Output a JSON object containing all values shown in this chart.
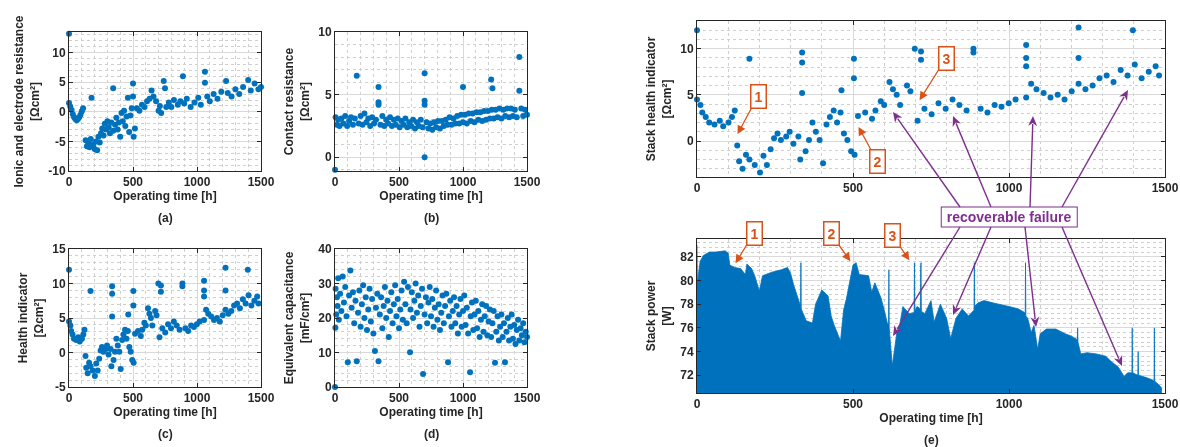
{
  "chart_data": [
    {
      "type": "scatter",
      "xlabel": "Operating time [h]",
      "ylabel": "Ionic and electrode resistance\n[Ωcm²]",
      "annotations": [
        "(a)"
      ],
      "xlim": [
        0,
        1500
      ],
      "ylim": [
        -10,
        13.5
      ],
      "xticks": [
        0,
        500,
        1000,
        1500
      ],
      "yticks": [
        -10,
        -5,
        0,
        5,
        10
      ],
      "grid": true,
      "marker": "circle",
      "x": [
        0,
        0,
        10,
        20,
        30,
        40,
        50,
        60,
        70,
        80,
        90,
        100,
        110,
        130,
        140,
        150,
        160,
        170,
        176,
        190,
        200,
        210,
        220,
        230,
        240,
        250,
        260,
        270,
        280,
        290,
        300,
        310,
        320,
        330,
        345,
        345,
        360,
        370,
        380,
        390,
        400,
        410,
        420,
        430,
        440,
        450,
        460,
        470,
        480,
        490,
        500,
        500,
        505,
        515,
        530,
        550,
        570,
        590,
        610,
        630,
        645,
        660,
        680,
        700,
        710,
        720,
        740,
        750,
        760,
        780,
        800,
        820,
        850,
        870,
        890,
        900,
        920,
        950,
        980,
        1010,
        1030,
        1062,
        1062,
        1080,
        1100,
        1130,
        1160,
        1190,
        1227,
        1240,
        1270,
        1300,
        1330,
        1360,
        1400,
        1420,
        1450,
        1480,
        1500
      ],
      "series": [
        {
          "color": "#0072bd",
          "values": [
            13.2,
            1.5,
            0.9,
            0.3,
            -0.4,
            -0.9,
            -1.2,
            -1.4,
            -1.2,
            -0.9,
            -0.5,
            0.1,
            0.6,
            -4.8,
            -5.8,
            -5.2,
            -6.0,
            -4.6,
            2.4,
            -5.5,
            -6.3,
            -5.0,
            -6.5,
            -4.2,
            -5.2,
            -3.6,
            -2.8,
            -4.0,
            -2.0,
            -3.0,
            -1.6,
            -2.6,
            -3.6,
            -1.8,
            4.0,
            -3.2,
            -2.2,
            -1.0,
            -3.0,
            -1.8,
            -4.2,
            -0.2,
            -1.6,
            0.2,
            -2.4,
            -0.8,
            2.4,
            -3.4,
            -0.6,
            0.6,
            4.8,
            2.6,
            -4.2,
            -2.8,
            0.6,
            0.2,
            1.2,
            0.8,
            1.8,
            2.2,
            3.6,
            2.6,
            1.8,
            0.2,
            1.0,
            -0.2,
            5.2,
            4.0,
            0.8,
            1.6,
            0.8,
            2.0,
            1.2,
            1.8,
            6.0,
            1.4,
            2.2,
            0.8,
            1.6,
            2.4,
            1.2,
            6.8,
            4.9,
            2.6,
            1.8,
            3.0,
            2.2,
            3.4,
            5.2,
            3.2,
            2.6,
            3.8,
            3.0,
            4.2,
            5.4,
            3.6,
            4.8,
            3.8,
            4.2
          ]
        }
      ]
    },
    {
      "type": "scatter",
      "xlabel": "Operating time [h]",
      "ylabel": "Contact resistance\n[Ωcm²]",
      "annotations": [
        "(b)"
      ],
      "xlim": [
        0,
        1500
      ],
      "ylim": [
        -1.1,
        10
      ],
      "xticks": [
        0,
        500,
        1000,
        1500
      ],
      "yticks": [
        0,
        5,
        10
      ],
      "grid": true,
      "marker": "circle",
      "x": [
        0,
        5,
        15,
        25,
        35,
        50,
        65,
        80,
        95,
        110,
        125,
        140,
        155,
        170,
        185,
        200,
        215,
        230,
        245,
        260,
        275,
        290,
        305,
        320,
        340,
        340,
        340,
        355,
        370,
        385,
        400,
        415,
        430,
        445,
        460,
        475,
        490,
        505,
        520,
        535,
        550,
        565,
        580,
        595,
        610,
        625,
        640,
        655,
        670,
        685,
        700,
        700,
        700,
        700,
        715,
        730,
        745,
        760,
        775,
        790,
        805,
        820,
        835,
        850,
        865,
        880,
        895,
        910,
        925,
        940,
        955,
        970,
        985,
        1000,
        1000,
        1015,
        1030,
        1045,
        1060,
        1075,
        1090,
        1105,
        1120,
        1135,
        1150,
        1165,
        1180,
        1195,
        1210,
        1220,
        1225,
        1230,
        1240,
        1255,
        1270,
        1285,
        1300,
        1315,
        1330,
        1345,
        1360,
        1375,
        1390,
        1405,
        1420,
        1440,
        1440,
        1455,
        1470,
        1485,
        1500
      ],
      "series": [
        {
          "color": "#0072bd",
          "values": [
            -1.0,
            3.2,
            2.6,
            3.0,
            2.5,
            3.1,
            2.7,
            3.3,
            2.5,
            2.9,
            3.2,
            2.6,
            3.1,
            6.5,
            2.7,
            3.3,
            2.6,
            3.5,
            2.8,
            3.1,
            2.5,
            3.2,
            2.7,
            3.0,
            5.6,
            4.4,
            4.2,
            2.6,
            3.3,
            2.5,
            3.0,
            2.7,
            3.2,
            2.5,
            3.0,
            2.6,
            3.1,
            2.4,
            2.9,
            2.6,
            3.1,
            2.4,
            2.8,
            2.5,
            3.0,
            2.3,
            2.8,
            2.5,
            3.0,
            2.4,
            6.7,
            4.5,
            4.2,
            0.0,
            2.8,
            2.3,
            2.7,
            2.2,
            2.8,
            2.4,
            2.9,
            2.3,
            2.9,
            2.5,
            3.0,
            2.6,
            3.2,
            2.6,
            3.1,
            2.7,
            3.3,
            2.7,
            3.4,
            5.6,
            2.8,
            3.4,
            2.7,
            3.5,
            2.9,
            3.5,
            2.8,
            3.6,
            3.0,
            3.6,
            2.9,
            3.7,
            3.0,
            3.7,
            3.1,
            6.2,
            3.8,
            5.5,
            3.1,
            3.8,
            3.2,
            3.9,
            3.1,
            3.8,
            3.3,
            3.9,
            3.2,
            3.9,
            3.3,
            3.8,
            3.2,
            8.0,
            5.3,
            3.9,
            3.3,
            3.8,
            3.4
          ]
        }
      ]
    },
    {
      "type": "scatter",
      "ylabel": "Stack health indicator\n[Ωcm²]",
      "xlim": [
        0,
        1500
      ],
      "ylim": [
        -3.9,
        13
      ],
      "xticks": [
        0,
        500,
        1000,
        1500
      ],
      "yticks": [
        0,
        5,
        10
      ],
      "grid": true,
      "marker": "circle",
      "annotations": [
        "1",
        "2",
        "3",
        "recoverable failure"
      ],
      "x": [
        0,
        0,
        11,
        17,
        28,
        39,
        56,
        73,
        84,
        101,
        112,
        121,
        129,
        135,
        146,
        157,
        168,
        168,
        185,
        202,
        213,
        224,
        236,
        247,
        258,
        269,
        286,
        297,
        309,
        325,
        331,
        337,
        337,
        337,
        348,
        359,
        370,
        381,
        393,
        404,
        415,
        426,
        438,
        449,
        460,
        463,
        471,
        482,
        494,
        503,
        503,
        505,
        516,
        539,
        561,
        572,
        589,
        600,
        617,
        628,
        640,
        651,
        673,
        684,
        698,
        707,
        718,
        718,
        729,
        752,
        774,
        797,
        819,
        841,
        864,
        886,
        886,
        909,
        931,
        954,
        976,
        999,
        1021,
        1055,
        1055,
        1055,
        1055,
        1071,
        1088,
        1111,
        1133,
        1156,
        1178,
        1201,
        1223,
        1223,
        1223,
        1245,
        1268,
        1290,
        1313,
        1335,
        1358,
        1380,
        1397,
        1403,
        1425,
        1448,
        1470,
        1481
      ],
      "series": [
        {
          "color": "#0072bd",
          "values": [
            12.0,
            4.5,
            3.9,
            3.1,
            2.6,
            2.0,
            1.8,
            2.2,
            1.6,
            2.0,
            2.6,
            3.3,
            -0.5,
            -2.2,
            -3.0,
            -1.5,
            -2.0,
            8.9,
            -2.6,
            -3.4,
            -1.6,
            -2.6,
            -0.9,
            0.3,
            0.8,
            0.1,
            0.5,
            1.0,
            -0.3,
            0.5,
            -2.0,
            9.6,
            8.5,
            5.2,
            -1.1,
            0.1,
            2.0,
            1.0,
            0.1,
            -2.4,
            1.8,
            2.6,
            3.3,
            2.0,
            3.1,
            5.5,
            0.8,
            0.1,
            -1.1,
            8.9,
            6.8,
            -1.5,
            2.7,
            3.1,
            2.4,
            3.3,
            4.3,
            3.9,
            6.4,
            5.6,
            5.0,
            3.9,
            6.0,
            5.4,
            10.0,
            2.2,
            9.7,
            8.8,
            3.5,
            2.9,
            4.1,
            3.5,
            4.5,
            3.9,
            3.3,
            10.0,
            9.6,
            3.5,
            3.1,
            3.9,
            3.7,
            4.1,
            4.5,
            10.4,
            9.0,
            8.1,
            4.7,
            6.2,
            5.6,
            5.2,
            4.7,
            5.0,
            4.5,
            5.4,
            12.3,
            9.0,
            6.2,
            5.6,
            6.0,
            6.8,
            7.1,
            6.4,
            7.7,
            7.1,
            12.0,
            8.3,
            6.8,
            7.5,
            8.1,
            7.1
          ]
        }
      ]
    },
    {
      "type": "scatter",
      "xlabel": "Operating time [h]",
      "ylabel": "Health indicator\n[Ωcm²]",
      "annotations": [
        "(c)"
      ],
      "xlim": [
        0,
        1500
      ],
      "ylim": [
        -5,
        15
      ],
      "xticks": [
        0,
        500,
        1000,
        1500
      ],
      "yticks": [
        -5,
        0,
        5,
        10,
        15
      ],
      "grid": true,
      "marker": "circle",
      "x": [
        0,
        0,
        11,
        17,
        28,
        39,
        56,
        73,
        84,
        101,
        112,
        121,
        129,
        135,
        146,
        157,
        168,
        168,
        185,
        202,
        213,
        224,
        236,
        247,
        258,
        269,
        286,
        297,
        309,
        325,
        331,
        337,
        337,
        337,
        348,
        359,
        370,
        381,
        393,
        404,
        415,
        426,
        438,
        449,
        460,
        463,
        471,
        482,
        494,
        503,
        503,
        505,
        516,
        539,
        561,
        572,
        589,
        600,
        617,
        628,
        640,
        651,
        673,
        684,
        698,
        707,
        718,
        718,
        729,
        752,
        774,
        797,
        819,
        841,
        864,
        886,
        886,
        909,
        931,
        954,
        976,
        999,
        1021,
        1055,
        1055,
        1055,
        1055,
        1071,
        1088,
        1111,
        1133,
        1156,
        1178,
        1201,
        1223,
        1223,
        1223,
        1245,
        1268,
        1290,
        1313,
        1335,
        1358,
        1380,
        1397,
        1403,
        1425,
        1448,
        1470,
        1481
      ],
      "series": [
        {
          "color": "#0072bd",
          "values": [
            12.0,
            4.5,
            3.9,
            3.1,
            2.6,
            2.0,
            1.8,
            2.2,
            1.6,
            2.0,
            2.6,
            3.3,
            -0.5,
            -2.2,
            -3.0,
            -1.5,
            -2.0,
            8.9,
            -2.6,
            -3.4,
            -1.6,
            -2.6,
            -0.9,
            0.3,
            0.8,
            0.1,
            0.5,
            1.0,
            -0.3,
            0.5,
            -2.0,
            9.6,
            8.5,
            5.2,
            -1.1,
            0.1,
            2.0,
            1.0,
            0.1,
            -2.4,
            1.8,
            2.6,
            3.3,
            2.0,
            3.1,
            5.5,
            0.8,
            0.1,
            -1.1,
            8.9,
            6.8,
            -1.5,
            2.7,
            3.1,
            2.4,
            3.3,
            4.3,
            3.9,
            6.4,
            5.6,
            5.0,
            3.9,
            6.0,
            5.4,
            10.0,
            2.2,
            9.7,
            8.8,
            3.5,
            2.9,
            4.1,
            3.5,
            4.5,
            3.9,
            3.3,
            10.0,
            9.6,
            3.5,
            3.1,
            3.9,
            3.7,
            4.1,
            4.5,
            10.4,
            9.0,
            8.1,
            4.7,
            6.2,
            5.6,
            5.2,
            4.7,
            5.0,
            4.5,
            5.4,
            12.3,
            9.0,
            6.2,
            5.6,
            6.0,
            6.8,
            7.1,
            6.4,
            7.7,
            7.1,
            12.0,
            8.3,
            6.8,
            7.5,
            8.1,
            7.1
          ]
        }
      ]
    },
    {
      "type": "scatter",
      "xlabel": "Operating time [h]",
      "ylabel": "Equivalent capacitance\n[mF/cm²]",
      "annotations": [
        "(d)"
      ],
      "xlim": [
        0,
        1500
      ],
      "ylim": [
        0,
        40
      ],
      "xticks": [
        0,
        500,
        1000,
        1500
      ],
      "yticks": [
        0,
        10,
        20,
        30,
        40
      ],
      "grid": true,
      "marker": "circle",
      "x": [
        0,
        3,
        5,
        10,
        15,
        20,
        25,
        30,
        40,
        50,
        60,
        70,
        80,
        90,
        100,
        110,
        120,
        130,
        140,
        150,
        160,
        170,
        180,
        190,
        200,
        210,
        220,
        230,
        240,
        250,
        260,
        270,
        280,
        290,
        300,
        312,
        320,
        330,
        340,
        350,
        360,
        370,
        380,
        390,
        400,
        410,
        420,
        430,
        440,
        450,
        460,
        470,
        480,
        490,
        500,
        510,
        520,
        530,
        540,
        550,
        560,
        570,
        586,
        590,
        600,
        610,
        620,
        630,
        640,
        650,
        660,
        670,
        680,
        688,
        700,
        710,
        720,
        730,
        740,
        750,
        760,
        770,
        780,
        790,
        800,
        810,
        820,
        830,
        840,
        850,
        860,
        870,
        883,
        890,
        900,
        910,
        920,
        930,
        940,
        950,
        960,
        970,
        980,
        990,
        1000,
        1010,
        1020,
        1030,
        1040,
        1055,
        1060,
        1070,
        1080,
        1090,
        1100,
        1110,
        1120,
        1130,
        1140,
        1150,
        1160,
        1170,
        1180,
        1190,
        1200,
        1210,
        1220,
        1230,
        1240,
        1250,
        1260,
        1270,
        1280,
        1290,
        1300,
        1310,
        1320,
        1328,
        1340,
        1350,
        1360,
        1370,
        1380,
        1390,
        1400,
        1410,
        1420,
        1430,
        1440,
        1450,
        1460,
        1470,
        1480,
        1490,
        1500
      ],
      "series": [
        {
          "color": "#0072bd",
          "values": [
            0.0,
            17.2,
            28.5,
            21.0,
            26.0,
            23.5,
            31.5,
            19.5,
            27.0,
            22.0,
            32.0,
            24.5,
            29.0,
            20.5,
            7.2,
            26.5,
            33.8,
            23.0,
            27.5,
            18.5,
            25.0,
            7.5,
            21.5,
            28.0,
            17.5,
            24.0,
            29.5,
            20.0,
            26.0,
            16.5,
            22.5,
            28.5,
            19.0,
            25.5,
            15.5,
            10.4,
            23.0,
            27.0,
            7.5,
            21.0,
            26.0,
            17.0,
            23.5,
            29.0,
            20.0,
            25.0,
            14.5,
            22.0,
            27.5,
            18.5,
            24.0,
            29.5,
            20.5,
            25.5,
            17.0,
            22.5,
            28.0,
            19.5,
            30.5,
            24.0,
            18.5,
            29.0,
            10.1,
            22.5,
            27.5,
            20.0,
            25.0,
            30.0,
            21.5,
            26.5,
            17.5,
            23.5,
            28.5,
            3.8,
            21.0,
            26.0,
            18.5,
            24.5,
            29.0,
            20.5,
            25.5,
            17.5,
            23.0,
            28.0,
            19.5,
            24.0,
            16.5,
            21.5,
            26.5,
            18.5,
            23.5,
            27.0,
            7.2,
            20.5,
            25.0,
            17.5,
            22.0,
            26.0,
            18.5,
            23.5,
            15.5,
            21.0,
            25.5,
            17.5,
            22.0,
            26.5,
            18.0,
            23.0,
            15.5,
            4.3,
            20.5,
            24.5,
            16.5,
            21.0,
            25.0,
            17.0,
            22.0,
            14.5,
            19.5,
            24.0,
            16.0,
            20.5,
            23.5,
            15.0,
            19.0,
            22.5,
            14.5,
            18.5,
            22.0,
            7.0,
            16.0,
            20.5,
            13.5,
            17.5,
            21.0,
            14.5,
            18.5,
            7.2,
            16.0,
            20.0,
            13.5,
            17.5,
            21.0,
            14.0,
            18.0,
            12.5,
            16.5,
            19.5,
            13.5,
            17.0,
            15.0,
            18.5,
            13.0,
            16.0,
            14.5
          ]
        }
      ]
    },
    {
      "type": "area",
      "xlabel": "Operating time [h]",
      "ylabel": "Stack power\n[W]",
      "xlim": [
        0,
        1500
      ],
      "ylim": [
        70.5,
        83.5
      ],
      "xticks": [
        0,
        500,
        1000,
        1500
      ],
      "yticks": [
        72,
        74,
        76,
        78,
        80,
        82
      ],
      "grid": true,
      "annotations": [
        "1",
        "2",
        "3",
        "(e)"
      ],
      "x": [
        0,
        1,
        2,
        10,
        20,
        40,
        60,
        90,
        100,
        105,
        120,
        140,
        155,
        160,
        175,
        185,
        200,
        210,
        240,
        270,
        290,
        300,
        310,
        330,
        332,
        333,
        334,
        350,
        370,
        380,
        400,
        420,
        430,
        440,
        460,
        470,
        480,
        500,
        510,
        520,
        550,
        560,
        570,
        590,
        600,
        610,
        614,
        615,
        616,
        626,
        640,
        650,
        660,
        680,
        696,
        697,
        698,
        705,
        716,
        717,
        718,
        719,
        730,
        750,
        760,
        780,
        800,
        813,
        830,
        850,
        870,
        888,
        889,
        890,
        900,
        920,
        950,
        1000,
        1030,
        1050,
        1052,
        1053,
        1054,
        1060,
        1071,
        1080,
        1092,
        1100,
        1120,
        1150,
        1180,
        1200,
        1219,
        1220,
        1221,
        1230,
        1250,
        1280,
        1310,
        1330,
        1350,
        1369,
        1380,
        1394,
        1395,
        1396,
        1413,
        1414,
        1415,
        1440,
        1460,
        1465,
        1466,
        1467,
        1480,
        1490
      ],
      "series": [
        {
          "color": "#0072bd",
          "values": [
            83.0,
            80.1,
            80.0,
            81.6,
            82.1,
            82.4,
            82.4,
            82.5,
            82.3,
            81.3,
            81.1,
            81.0,
            80.5,
            81.4,
            81.0,
            80.4,
            79.1,
            80.4,
            80.7,
            80.9,
            81.1,
            80.6,
            79.6,
            78.0,
            77.7,
            81.5,
            77.6,
            76.6,
            76.4,
            78.0,
            79.2,
            78.7,
            77.0,
            76.2,
            74.9,
            77.5,
            78.6,
            81.3,
            81.5,
            80.5,
            80.4,
            79.0,
            79.8,
            78.5,
            77.5,
            76.4,
            76.2,
            80.9,
            76.0,
            72.8,
            75.5,
            76.3,
            77.8,
            77.2,
            77.3,
            81.5,
            77.4,
            77.8,
            77.6,
            81.0,
            81.5,
            77.4,
            77.2,
            78.3,
            76.5,
            78.0,
            76.8,
            75.1,
            76.8,
            77.6,
            77.0,
            77.5,
            81.5,
            77.8,
            78.1,
            78.3,
            78.1,
            77.8,
            77.6,
            77.3,
            77.2,
            81.5,
            77.0,
            76.8,
            75.6,
            76.2,
            74.2,
            75.5,
            75.9,
            75.9,
            75.5,
            75.3,
            75.0,
            76.0,
            74.8,
            73.8,
            73.9,
            73.8,
            73.6,
            73.1,
            72.7,
            71.9,
            72.2,
            72.2,
            76.0,
            72.2,
            72.0,
            74.0,
            72.0,
            71.8,
            71.6,
            71.5,
            76.0,
            71.5,
            71.2,
            70.9
          ]
        }
      ]
    }
  ]
}
